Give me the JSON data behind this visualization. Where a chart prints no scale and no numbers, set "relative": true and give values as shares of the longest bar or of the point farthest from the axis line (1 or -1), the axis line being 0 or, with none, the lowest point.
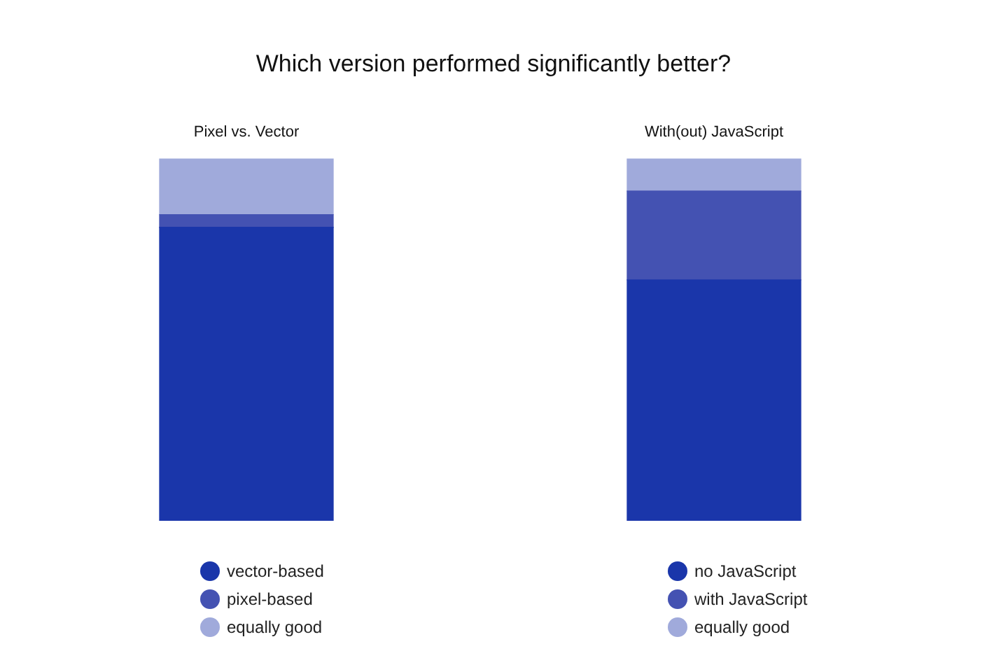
{
  "chart_data": [
    {
      "type": "bar",
      "title": "Which version performed significantly better?",
      "subtitle": "Pixel vs. Vector",
      "categories": [
        null
      ],
      "stacked": true,
      "relative": true,
      "legend": "bottom",
      "series": [
        {
          "name": "vector-based",
          "color": "#1a36aa",
          "values": [
            0.81
          ]
        },
        {
          "name": "pixel-based",
          "color": "#4452b2",
          "values": [
            0.035
          ]
        },
        {
          "name": "equally good",
          "color": "#a0aadb",
          "values": [
            0.155
          ]
        }
      ]
    },
    {
      "type": "bar",
      "subtitle": "With(out) JavaScript",
      "categories": [
        null
      ],
      "stacked": true,
      "relative": true,
      "legend": "bottom",
      "series": [
        {
          "name": "no JavaScript",
          "color": "#1a36aa",
          "values": [
            0.665
          ]
        },
        {
          "name": "with JavaScript",
          "color": "#4452b2",
          "values": [
            0.245
          ]
        },
        {
          "name": "equally good",
          "color": "#a0aadb",
          "values": [
            0.09
          ]
        }
      ]
    }
  ]
}
